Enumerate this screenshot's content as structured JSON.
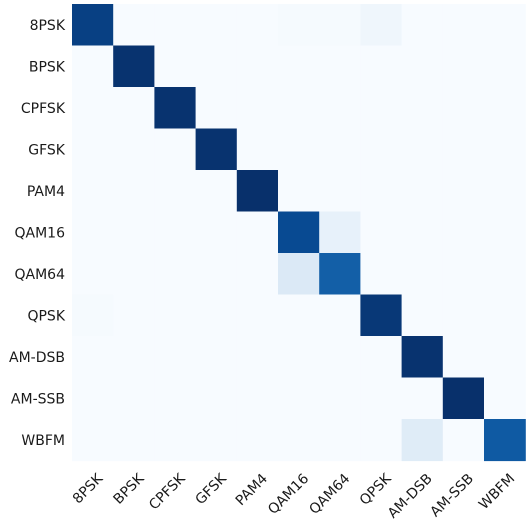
{
  "chart_data": {
    "type": "heatmap",
    "title": "",
    "xlabel": "",
    "ylabel": "",
    "rows": [
      "8PSK",
      "BPSK",
      "CPFSK",
      "GFSK",
      "PAM4",
      "QAM16",
      "QAM64",
      "QPSK",
      "AM-DSB",
      "AM-SSB",
      "WBFM"
    ],
    "columns": [
      "8PSK",
      "BPSK",
      "CPFSK",
      "GFSK",
      "PAM4",
      "QAM16",
      "QAM64",
      "QPSK",
      "AM-DSB",
      "AM-SSB",
      "WBFM"
    ],
    "values": [
      [
        0.94,
        0.0,
        0.0,
        0.0,
        0.0,
        0.01,
        0.01,
        0.04,
        0.0,
        0.0,
        0.0
      ],
      [
        0.0,
        0.99,
        0.0,
        0.0,
        0.0,
        0.0,
        0.0,
        0.0,
        0.0,
        0.0,
        0.0
      ],
      [
        0.0,
        0.0,
        0.99,
        0.0,
        0.0,
        0.0,
        0.0,
        0.0,
        0.0,
        0.0,
        0.0
      ],
      [
        0.0,
        0.0,
        0.0,
        0.99,
        0.0,
        0.0,
        0.0,
        0.0,
        0.0,
        0.0,
        0.0
      ],
      [
        0.0,
        0.0,
        0.0,
        0.0,
        1.0,
        0.0,
        0.0,
        0.0,
        0.0,
        0.0,
        0.0
      ],
      [
        0.0,
        0.0,
        0.0,
        0.0,
        0.0,
        0.9,
        0.08,
        0.0,
        0.0,
        0.0,
        0.0
      ],
      [
        0.0,
        0.0,
        0.0,
        0.0,
        0.0,
        0.14,
        0.82,
        0.0,
        0.0,
        0.0,
        0.0
      ],
      [
        0.01,
        0.0,
        0.0,
        0.0,
        0.0,
        0.0,
        0.0,
        0.97,
        0.0,
        0.0,
        0.0
      ],
      [
        0.0,
        0.0,
        0.0,
        0.0,
        0.0,
        0.0,
        0.0,
        0.0,
        0.99,
        0.0,
        0.0
      ],
      [
        0.0,
        0.0,
        0.0,
        0.0,
        0.0,
        0.0,
        0.0,
        0.0,
        0.0,
        1.0,
        0.0
      ],
      [
        0.0,
        0.0,
        0.0,
        0.0,
        0.0,
        0.0,
        0.0,
        0.0,
        0.12,
        0.0,
        0.84
      ]
    ],
    "colormap": "Blues",
    "vmin": 0,
    "vmax": 1,
    "colorbar": false,
    "grid": false
  }
}
